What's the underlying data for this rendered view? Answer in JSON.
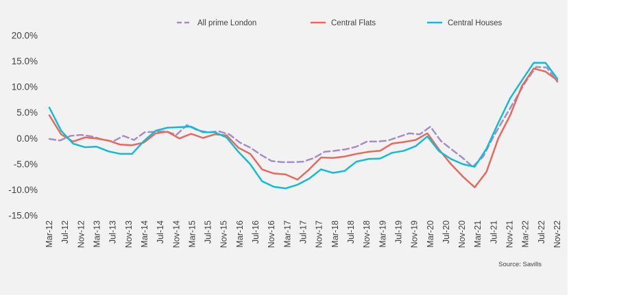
{
  "chart_data": {
    "type": "line",
    "title": "",
    "xlabel": "",
    "ylabel": "",
    "ylim": [
      -15,
      20
    ],
    "y_ticks": [
      "20.0%",
      "15.0%",
      "10.0%",
      "5.0%",
      "0.0%",
      "-5.0%",
      "-10.0%",
      "-15.0%"
    ],
    "x_tick_labels": [
      "Mar-12",
      "Jul-12",
      "Nov-12",
      "Mar-13",
      "Jul-13",
      "Nov-13",
      "Mar-14",
      "Jul-14",
      "Nov-14",
      "Mar-15",
      "Jul-15",
      "Nov-15",
      "Mar-16",
      "Jul-16",
      "Nov-16",
      "Mar-17",
      "Jul-17",
      "Nov-17",
      "Mar-18",
      "Jul-18",
      "Nov-18",
      "Mar-19",
      "Jul-19",
      "Nov-19",
      "Mar-20",
      "Jul-20",
      "Nov-20",
      "Mar-21",
      "Jul-21",
      "Nov-21",
      "Mar-22",
      "Jul-22",
      "Nov-22"
    ],
    "legend_position": "top",
    "grid": false,
    "series": [
      {
        "name": "All prime London",
        "color": "#a48cc8",
        "style": "dashed",
        "values": [
          -0.1,
          -0.4,
          0.5,
          0.7,
          0.4,
          -0.2,
          -0.6,
          0.5,
          -0.3,
          1.2,
          1.3,
          1.4,
          0.7,
          2.6,
          1.6,
          1.2,
          1.4,
          0.8,
          -0.8,
          -1.8,
          -3.2,
          -4.4,
          -4.6,
          -4.6,
          -4.5,
          -3.8,
          -2.6,
          -2.4,
          -2.1,
          -1.6,
          -0.6,
          -0.6,
          -0.4,
          0.3,
          1.0,
          0.8,
          2.3,
          -0.5,
          -2.1,
          -3.7,
          -5.5,
          -3.5,
          0.5,
          4.0,
          7.5,
          11.0,
          13.9,
          13.8,
          11.0
        ]
      },
      {
        "name": "Central Flats",
        "color": "#e8695c",
        "style": "solid",
        "values": [
          4.5,
          0.8,
          -0.6,
          0.2,
          0.0,
          -0.4,
          -1.2,
          -1.3,
          -0.8,
          1.0,
          1.3,
          0.0,
          0.9,
          0.1,
          0.8,
          0.6,
          -1.8,
          -3.0,
          -6.0,
          -6.8,
          -7.0,
          -8.0,
          -6.0,
          -3.7,
          -3.8,
          -3.5,
          -3.0,
          -2.6,
          -2.4,
          -1.0,
          -0.7,
          -0.3,
          1.0,
          -2.2,
          -5.0,
          -7.4,
          -9.5,
          -6.5,
          0.0,
          4.5,
          10.2,
          13.6,
          13.0,
          11.3
        ]
      },
      {
        "name": "Central Houses",
        "color": "#12bcd4",
        "style": "solid",
        "values": [
          6.0,
          1.5,
          -1.0,
          -1.7,
          -1.6,
          -2.5,
          -3.0,
          -3.0,
          -0.5,
          1.5,
          2.1,
          2.2,
          2.3,
          1.2,
          1.2,
          0.2,
          -2.6,
          -5.0,
          -8.3,
          -9.4,
          -9.7,
          -9.0,
          -7.8,
          -6.0,
          -6.7,
          -6.3,
          -4.5,
          -4.0,
          -3.9,
          -2.8,
          -2.4,
          -1.5,
          0.4,
          -2.5,
          -4.0,
          -5.0,
          -5.5,
          -2.0,
          3.0,
          7.8,
          11.3,
          14.7,
          14.7,
          11.6
        ]
      }
    ]
  },
  "source_note": "Source: Savills"
}
